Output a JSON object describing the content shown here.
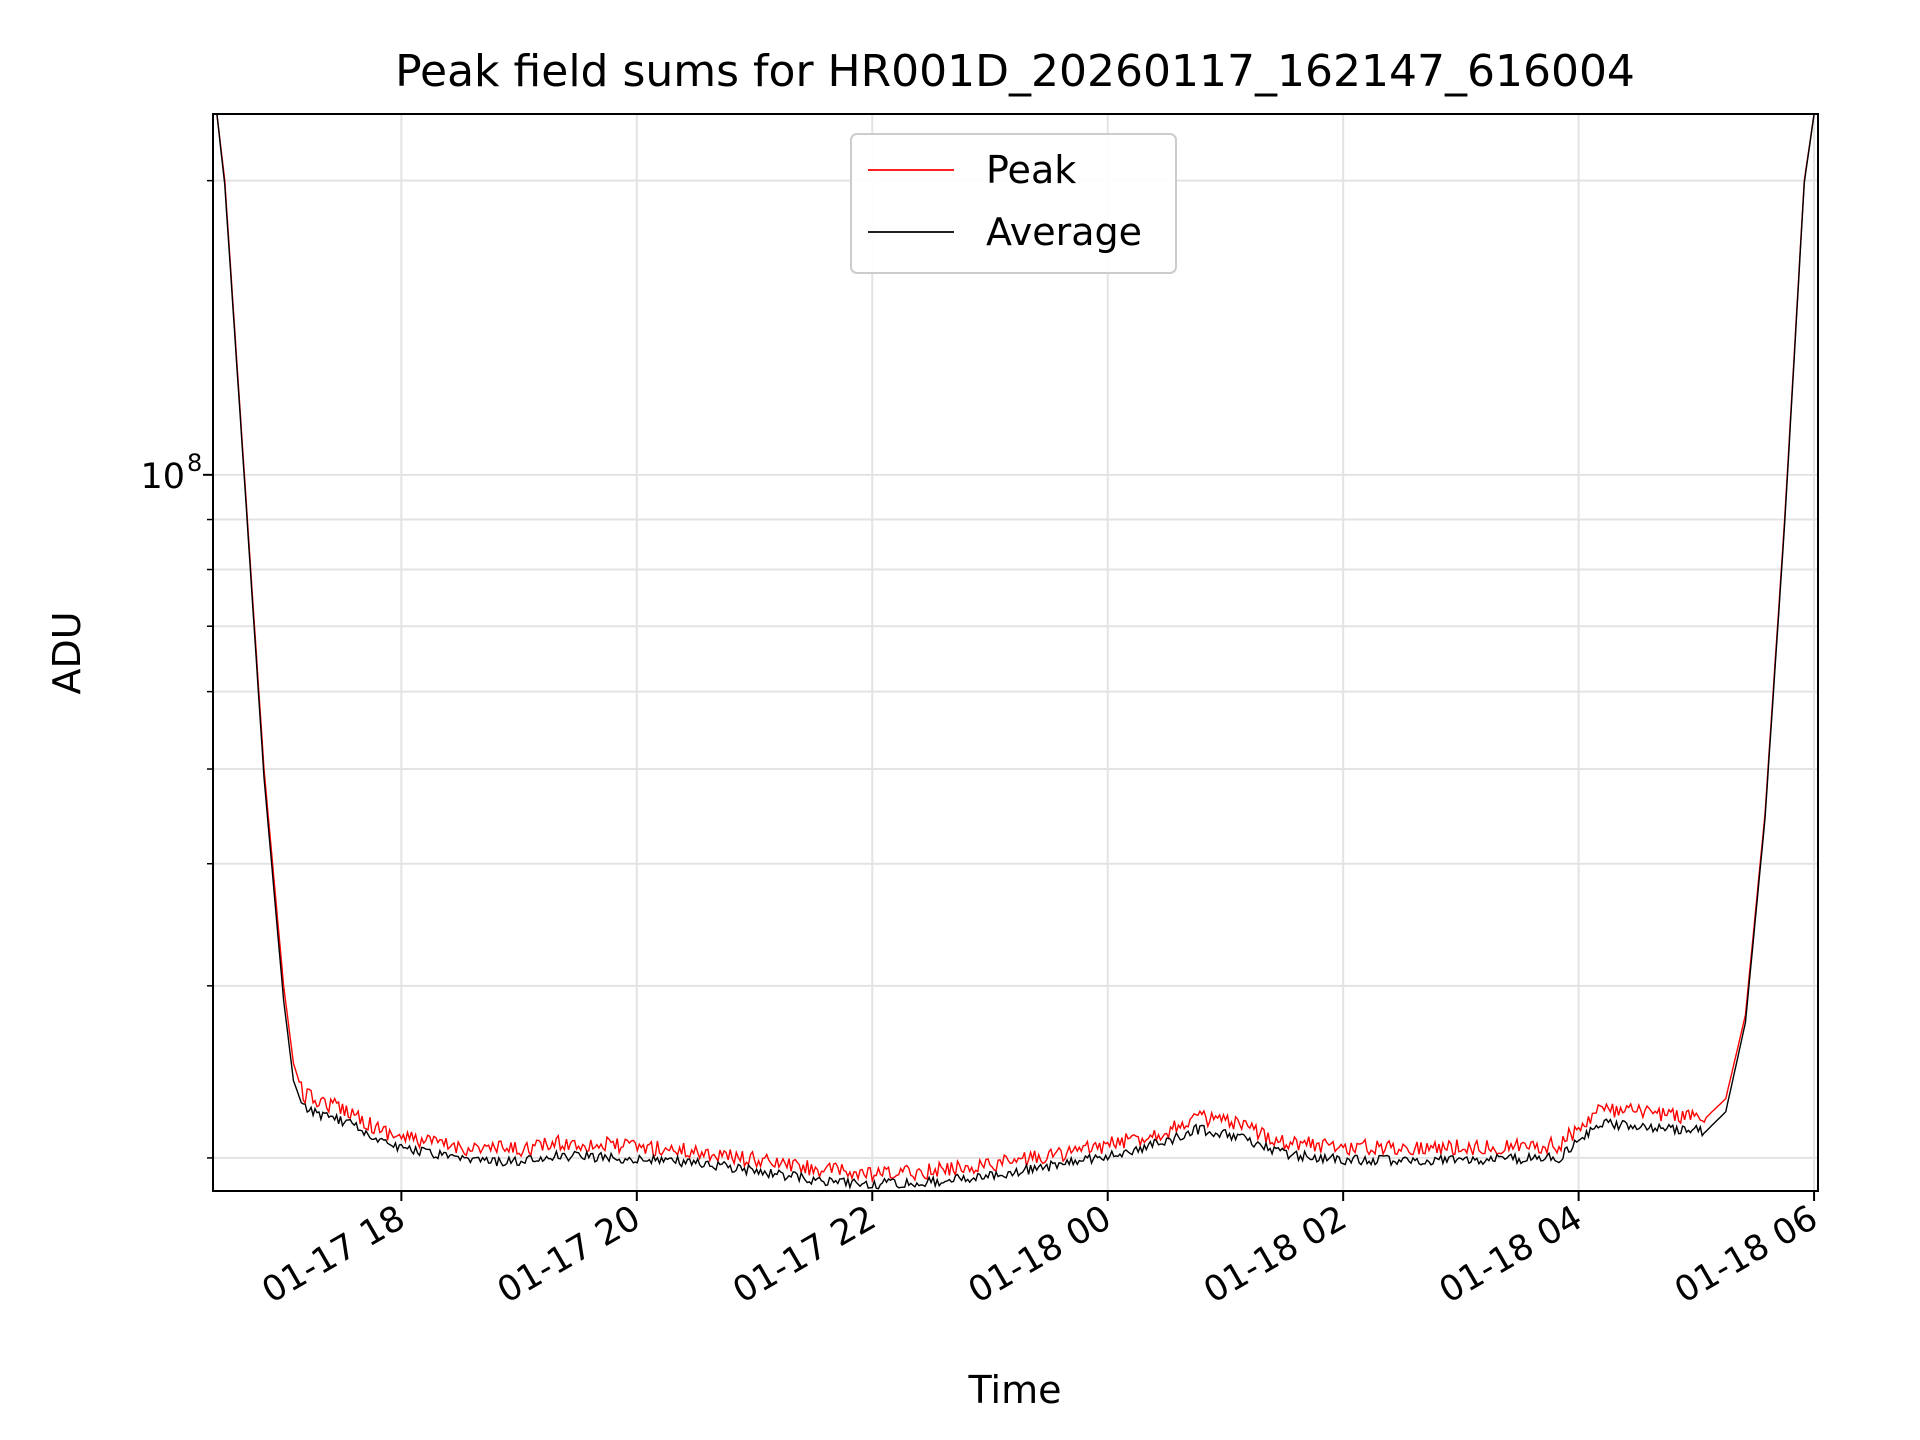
{
  "chart_data": {
    "type": "line",
    "title": "Peak field sums for HR001D_20260117_162147_616004",
    "xlabel": "Time",
    "ylabel": "ADU",
    "yscale": "log",
    "xlim": [
      "2026-01-17 16:24",
      "2026-01-18 06:02"
    ],
    "ylim": [
      18500000,
      234000000
    ],
    "x_ticks": [
      "2026-01-17 18:00",
      "2026-01-17 20:00",
      "2026-01-17 22:00",
      "2026-01-18 00:00",
      "2026-01-18 02:00",
      "2026-01-18 04:00",
      "2026-01-18 06:00"
    ],
    "x_tick_labels": [
      "01-17 18",
      "01-17 20",
      "01-17 22",
      "01-18 00",
      "01-18 02",
      "01-18 04",
      "01-18 06"
    ],
    "y_major_ticks": [
      100000000
    ],
    "y_major_tick_labels": [
      "10",
      "8"
    ],
    "y_minor_ticks": [
      20000000,
      30000000,
      40000000,
      50000000,
      60000000,
      70000000,
      80000000,
      90000000,
      200000000
    ],
    "grid": true,
    "legend_position": "top-center",
    "series": [
      {
        "name": "Peak",
        "color": "#ff0000",
        "x": [
          "2026-01-17 16:26",
          "2026-01-17 16:30",
          "2026-01-17 16:40",
          "2026-01-17 16:50",
          "2026-01-17 17:00",
          "2026-01-17 17:05",
          "2026-01-17 17:10",
          "2026-01-17 17:20",
          "2026-01-17 17:35",
          "2026-01-17 17:46",
          "2026-01-17 18:00",
          "2026-01-17 18:30",
          "2026-01-17 19:00",
          "2026-01-17 19:20",
          "2026-01-17 19:50",
          "2026-01-17 20:30",
          "2026-01-17 21:00",
          "2026-01-17 21:30",
          "2026-01-17 22:00",
          "2026-01-17 22:30",
          "2026-01-17 23:00",
          "2026-01-17 23:30",
          "2026-01-18 00:00",
          "2026-01-18 00:30",
          "2026-01-18 00:45",
          "2026-01-18 01:00",
          "2026-01-18 01:30",
          "2026-01-18 02:00",
          "2026-01-18 03:00",
          "2026-01-18 03:50",
          "2026-01-18 04:10",
          "2026-01-18 04:40",
          "2026-01-18 05:05",
          "2026-01-18 05:15",
          "2026-01-18 05:25",
          "2026-01-18 05:35",
          "2026-01-18 05:45",
          "2026-01-18 05:55",
          "2026-01-18 06:00"
        ],
        "values": [
          234000000,
          200000000,
          100000000,
          50000000,
          30000000,
          25000000,
          23200000,
          22800000,
          22300000,
          21500000,
          21000000,
          20500000,
          20400000,
          20700000,
          20600000,
          20300000,
          19900000,
          19500000,
          19200000,
          19400000,
          19700000,
          20100000,
          20600000,
          21300000,
          22000000,
          21800000,
          20800000,
          20500000,
          20500000,
          20600000,
          22400000,
          22200000,
          22000000,
          23000000,
          28000000,
          45000000,
          90000000,
          200000000,
          234000000
        ]
      },
      {
        "name": "Average",
        "color": "#000000",
        "x": [
          "2026-01-17 16:26",
          "2026-01-17 16:30",
          "2026-01-17 16:40",
          "2026-01-17 16:50",
          "2026-01-17 17:00",
          "2026-01-17 17:05",
          "2026-01-17 17:10",
          "2026-01-17 17:20",
          "2026-01-17 17:35",
          "2026-01-17 17:46",
          "2026-01-17 18:00",
          "2026-01-17 18:30",
          "2026-01-17 19:00",
          "2026-01-17 19:20",
          "2026-01-17 19:50",
          "2026-01-17 20:30",
          "2026-01-17 21:00",
          "2026-01-17 21:30",
          "2026-01-17 22:00",
          "2026-01-17 22:30",
          "2026-01-17 23:00",
          "2026-01-17 23:30",
          "2026-01-18 00:00",
          "2026-01-18 00:30",
          "2026-01-18 00:45",
          "2026-01-18 01:00",
          "2026-01-18 01:30",
          "2026-01-18 02:00",
          "2026-01-18 03:00",
          "2026-01-18 03:50",
          "2026-01-18 04:10",
          "2026-01-18 04:40",
          "2026-01-18 05:05",
          "2026-01-18 05:15",
          "2026-01-18 05:25",
          "2026-01-18 05:35",
          "2026-01-18 05:45",
          "2026-01-18 05:55",
          "2026-01-18 06:00"
        ],
        "values": [
          234000000,
          198000000,
          99000000,
          49000000,
          29000000,
          24000000,
          22500000,
          22100000,
          21700000,
          21000000,
          20500000,
          19900000,
          19800000,
          20100000,
          20000000,
          19800000,
          19400000,
          19000000,
          18800000,
          18900000,
          19200000,
          19600000,
          20100000,
          20800000,
          21400000,
          21200000,
          20200000,
          19900000,
          19900000,
          20000000,
          21700000,
          21500000,
          21300000,
          22300000,
          27500000,
          44500000,
          89000000,
          199000000,
          234000000
        ]
      }
    ]
  }
}
